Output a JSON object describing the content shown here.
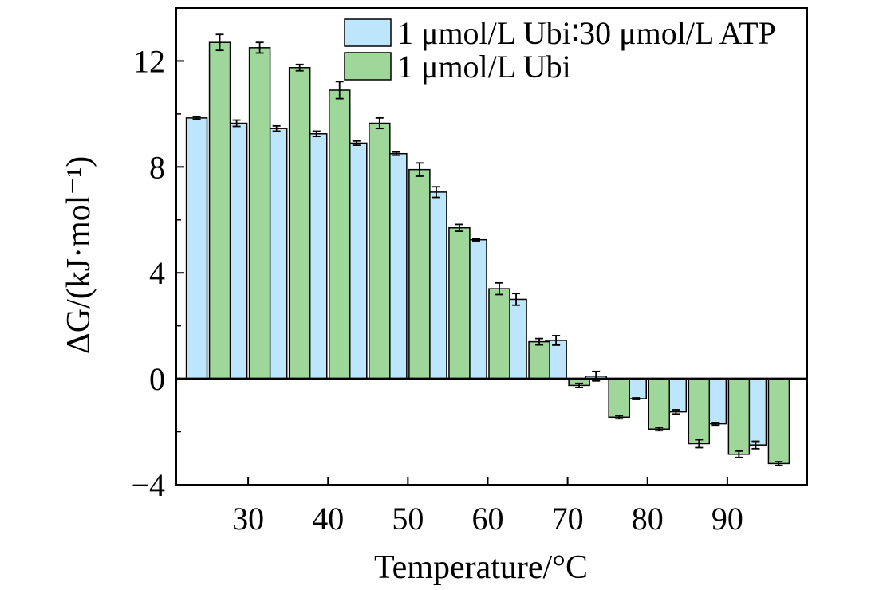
{
  "colors": {
    "series_a": "#bde5fb",
    "series_b": "#9fd69a",
    "stroke": "#000000"
  },
  "chart_data": {
    "type": "bar",
    "title": "",
    "xlabel": "Temperature/°C",
    "ylabel": "ΔG/(kJ·mol⁻¹)",
    "ylim": [
      -4,
      14
    ],
    "yticks": [
      -4,
      0,
      4,
      8,
      12
    ],
    "ytick_labels": [
      "−4",
      "0",
      "4",
      "8",
      "12"
    ],
    "xlim": [
      21,
      100
    ],
    "xticks": [
      30,
      40,
      50,
      60,
      70,
      80,
      90
    ],
    "ytick_minor": [
      2,
      6,
      10,
      -2
    ],
    "zero_line": true,
    "legend_position": "top-right",
    "categories": [
      25,
      30,
      35,
      40,
      45,
      50,
      55,
      60,
      65,
      70,
      75,
      80,
      85,
      90,
      95
    ],
    "series": [
      {
        "name": "1 μmol/L Ubi∶30 μmol/L ATP",
        "color": "#bde5fb",
        "values": [
          9.85,
          9.65,
          9.45,
          9.25,
          8.9,
          8.5,
          7.05,
          5.25,
          3.0,
          1.45,
          0.1,
          -0.75,
          -1.25,
          -1.7,
          -2.5
        ],
        "errors": [
          0.05,
          0.12,
          0.1,
          0.1,
          0.08,
          0.06,
          0.2,
          0.04,
          0.22,
          0.18,
          0.18,
          0.03,
          0.08,
          0.05,
          0.14
        ]
      },
      {
        "name": "1 μmol/L Ubi",
        "color": "#9fd69a",
        "values": [
          12.7,
          12.5,
          11.75,
          10.9,
          9.65,
          7.9,
          5.7,
          3.4,
          1.4,
          -0.25,
          -1.45,
          -1.9,
          -2.45,
          -2.85,
          -3.2
        ],
        "errors": [
          0.3,
          0.2,
          0.12,
          0.32,
          0.2,
          0.25,
          0.13,
          0.22,
          0.12,
          0.08,
          0.06,
          0.06,
          0.15,
          0.12,
          0.07
        ]
      }
    ]
  }
}
